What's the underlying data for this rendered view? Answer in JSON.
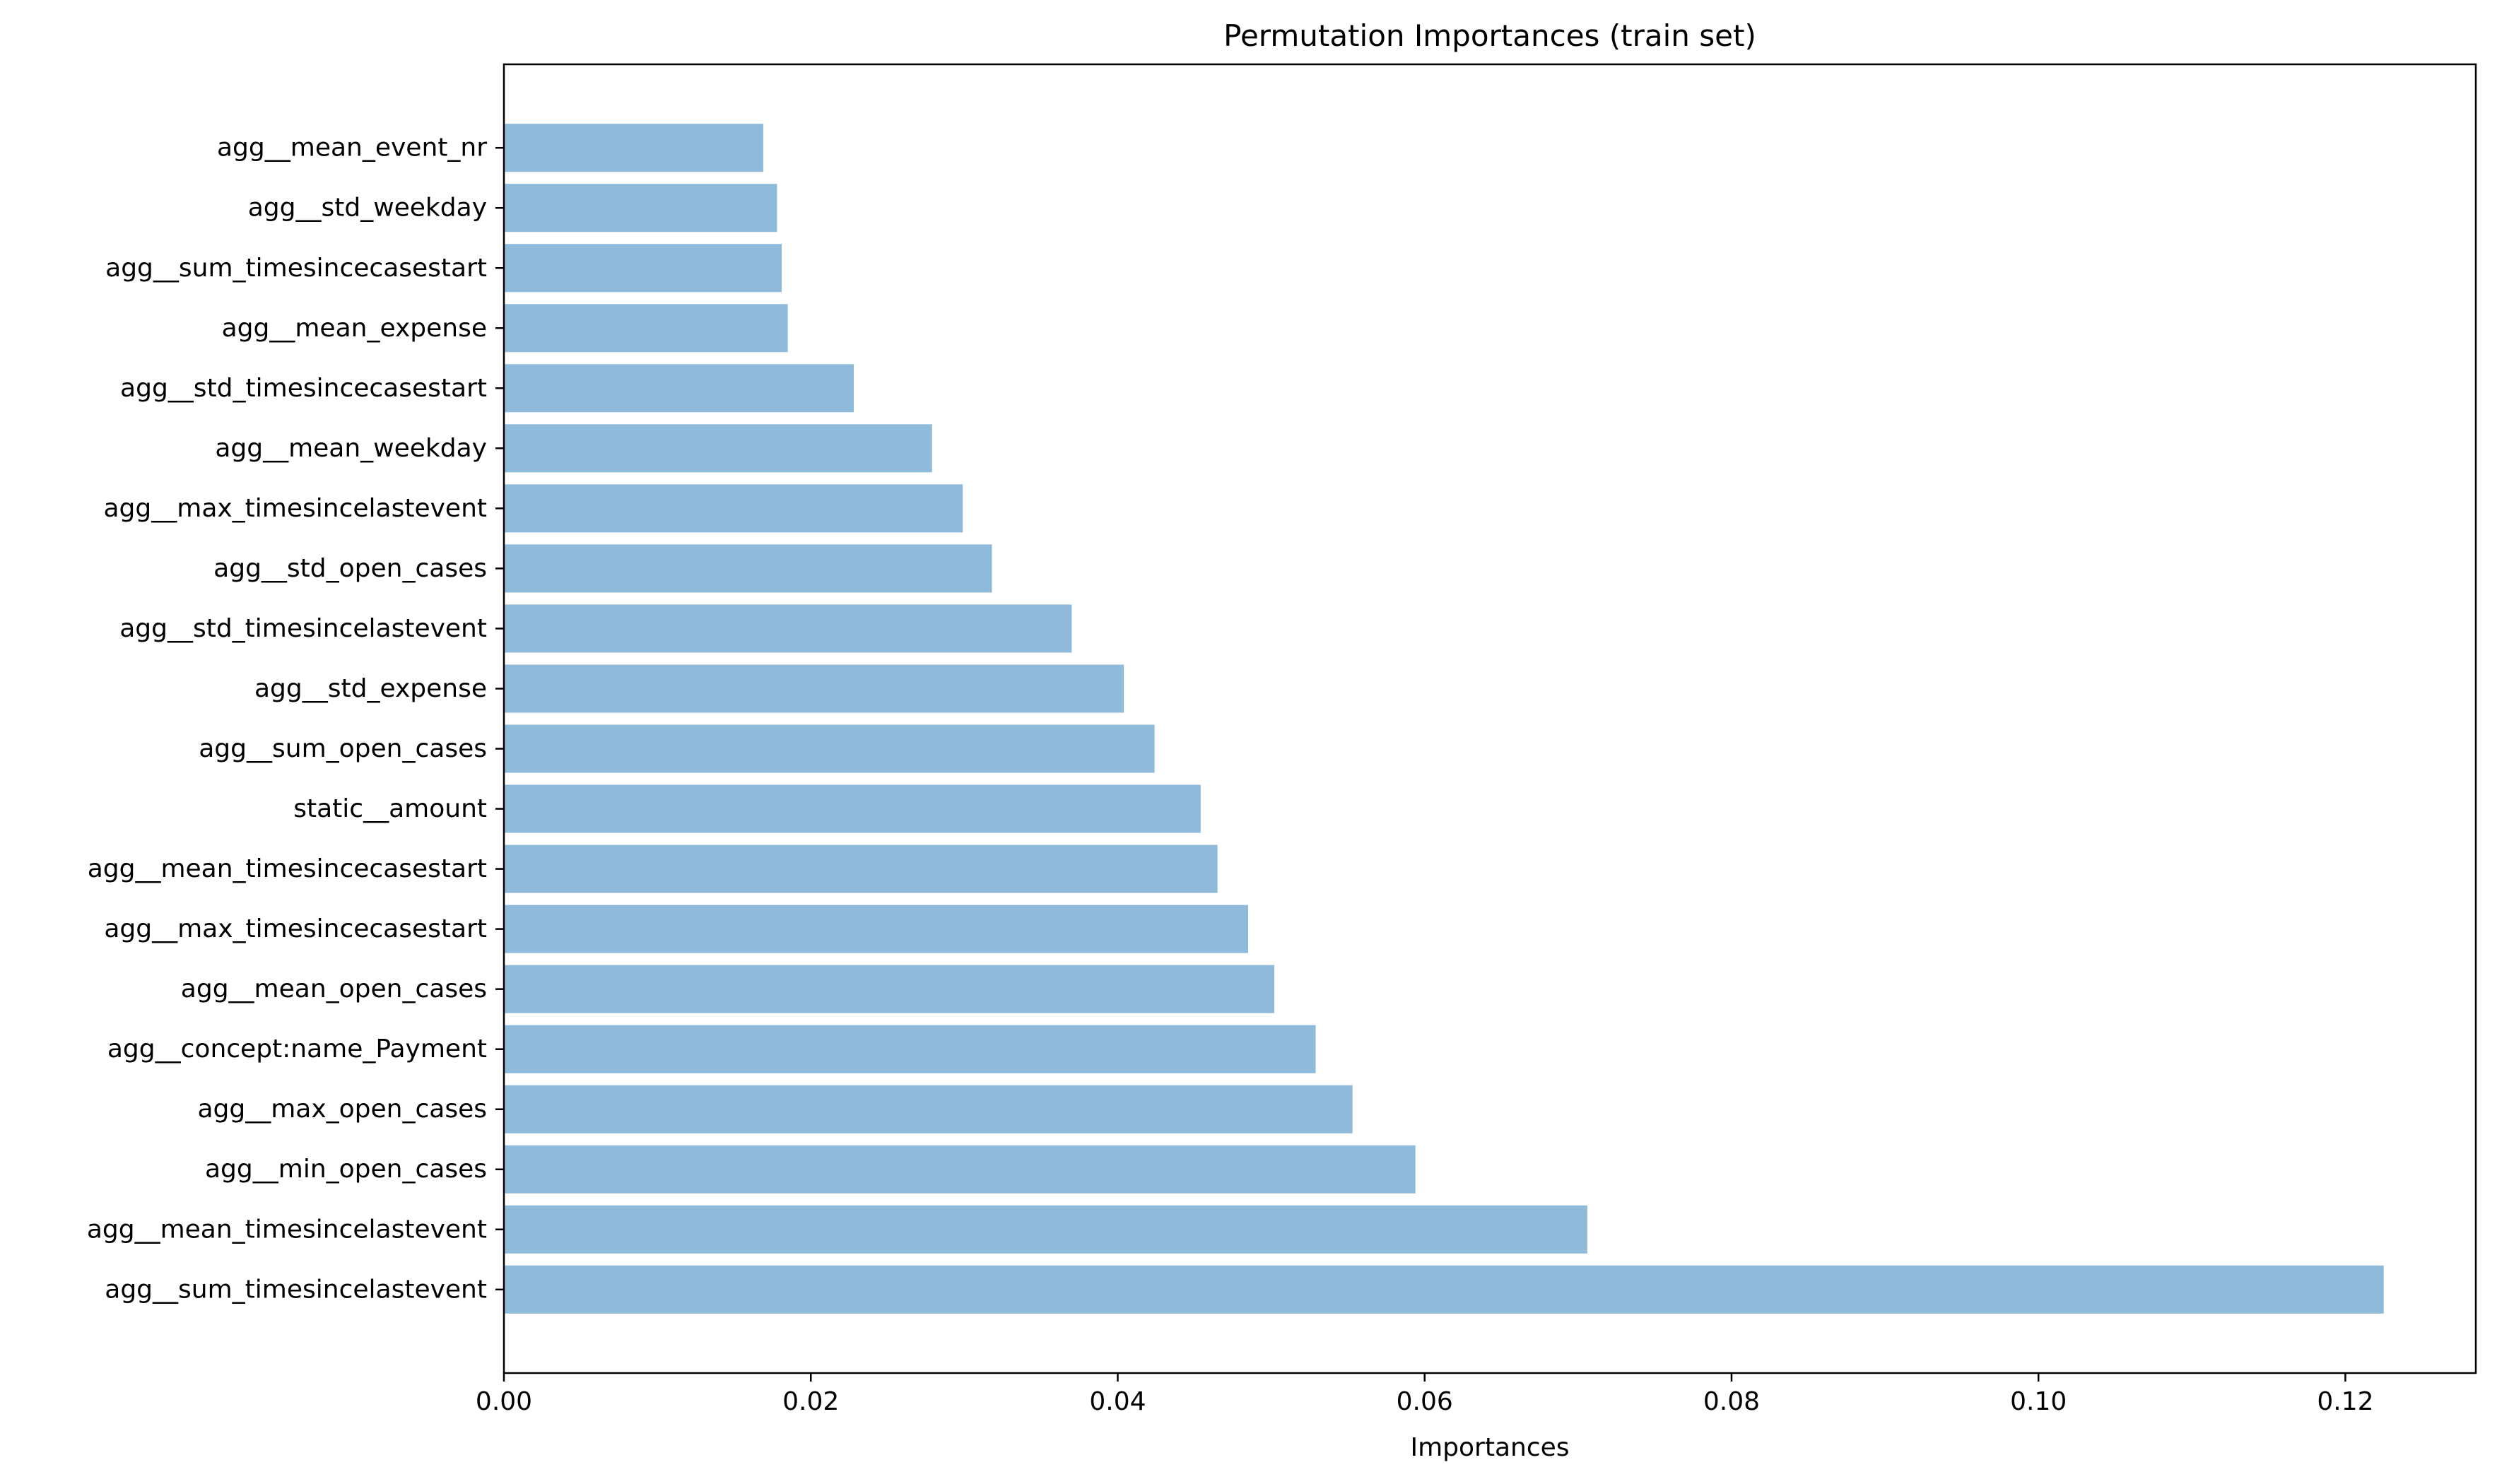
{
  "chart_data": {
    "type": "bar",
    "orientation": "horizontal",
    "title": "Permutation Importances (train set)",
    "xlabel": "Importances",
    "ylabel": "",
    "xlim": [
      0,
      0.1285
    ],
    "xticks": [
      0.0,
      0.02,
      0.04,
      0.06,
      0.08,
      0.1,
      0.12
    ],
    "xtick_labels": [
      "0.00",
      "0.02",
      "0.04",
      "0.06",
      "0.08",
      "0.10",
      "0.12"
    ],
    "bar_color": "#8fbad9",
    "grid": false,
    "categories": [
      "agg__sum_timesincelastevent",
      "agg__mean_timesincelastevent",
      "agg__min_open_cases",
      "agg__max_open_cases",
      "agg__concept:name_Payment",
      "agg__mean_open_cases",
      "agg__max_timesincecasestart",
      "agg__mean_timesincecasestart",
      "static__amount",
      "agg__sum_open_cases",
      "agg__std_expense",
      "agg__std_timesincelastevent",
      "agg__std_open_cases",
      "agg__max_timesincelastevent",
      "agg__mean_weekday",
      "agg__std_timesincecasestart",
      "agg__mean_expense",
      "agg__sum_timesincecasestart",
      "agg__std_weekday",
      "agg__mean_event_nr"
    ],
    "values": [
      0.1225,
      0.0706,
      0.0594,
      0.0553,
      0.0529,
      0.0502,
      0.0485,
      0.0465,
      0.0454,
      0.0424,
      0.0404,
      0.037,
      0.0318,
      0.0299,
      0.0279,
      0.0228,
      0.0185,
      0.0181,
      0.0178,
      0.0169
    ]
  }
}
